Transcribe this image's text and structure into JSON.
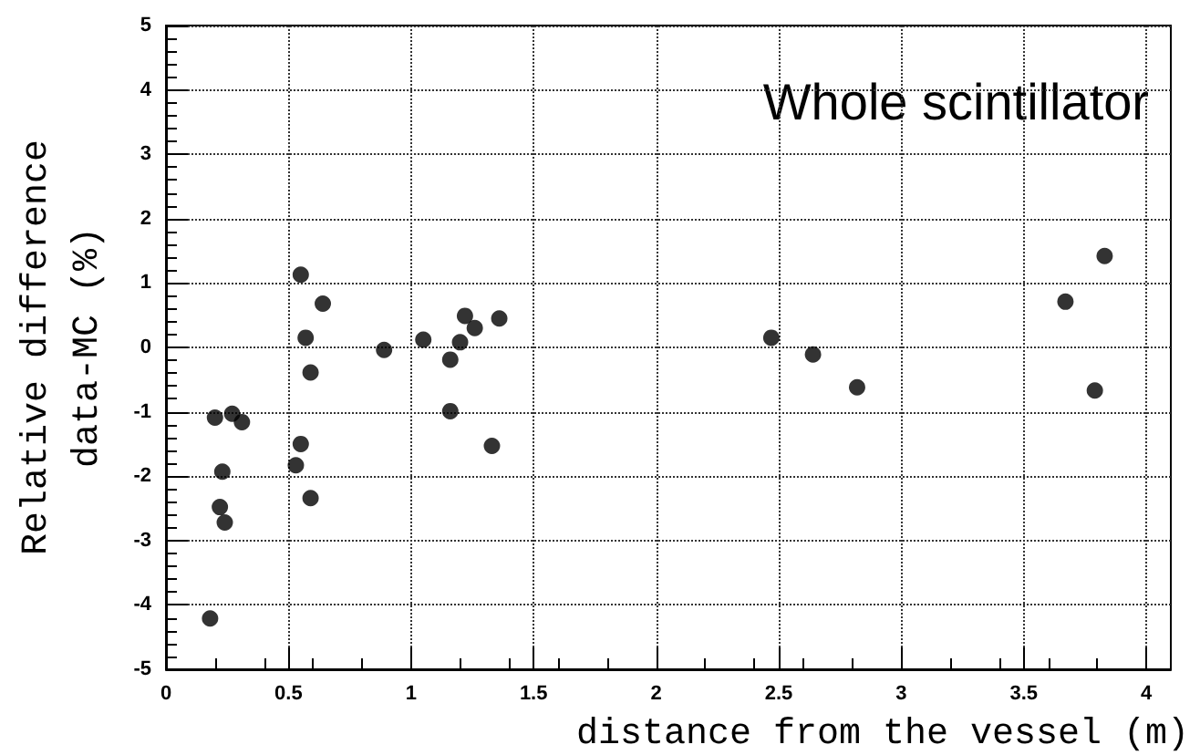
{
  "chart_data": {
    "type": "scatter",
    "xlabel": "distance from the vessel (m)",
    "ylabel": "Relative difference\ndata-MC (%)",
    "annotations": [
      "Whole scintillator"
    ],
    "x": [
      0.2,
      0.27,
      0.31,
      0.23,
      0.22,
      0.24,
      0.18,
      0.55,
      0.64,
      0.57,
      0.59,
      0.55,
      0.53,
      0.59,
      0.89,
      1.05,
      1.16,
      1.16,
      1.2,
      1.22,
      1.26,
      1.36,
      1.33,
      2.47,
      2.64,
      2.82,
      3.67,
      3.83,
      3.79
    ],
    "series": [
      {
        "color": "#000000",
        "values": [
          -1.09,
          -1.03,
          -1.16,
          -1.93,
          -2.48,
          -2.72,
          -4.21,
          1.13,
          0.68,
          0.15,
          -0.39,
          -1.5,
          -1.83,
          -2.34,
          -0.04,
          0.12,
          -0.19,
          -0.99,
          0.08,
          0.49,
          0.3,
          0.45,
          -1.53,
          0.15,
          -0.11,
          -0.62,
          0.71,
          1.42,
          -0.67
        ]
      }
    ],
    "xlim": [
      0,
      4.1
    ],
    "xticks": [
      0,
      0.5,
      1,
      1.5,
      2,
      2.5,
      3,
      3.5,
      4
    ],
    "ylim": [
      -5,
      5
    ],
    "yticks": [
      -5,
      -4,
      -3,
      -2,
      -1,
      0,
      1,
      2,
      3,
      4,
      5
    ],
    "grid": true,
    "marker": "circle"
  }
}
